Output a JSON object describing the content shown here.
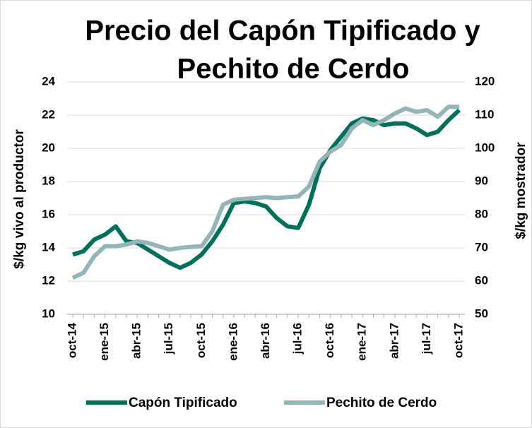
{
  "chart_data": {
    "type": "line",
    "title": [
      "Precio del Capón Tipificado y",
      "Pechito de Cerdo"
    ],
    "y_label": "$/kg vivo al productor",
    "y2_label": "$/kg mostrador",
    "categories": [
      "oct-14",
      null,
      null,
      "ene-15",
      null,
      null,
      "abr-15",
      null,
      null,
      "jul-15",
      null,
      null,
      "oct-15",
      null,
      null,
      "ene-16",
      null,
      null,
      "abr-16",
      null,
      null,
      "jul-16",
      null,
      null,
      "oct-16",
      null,
      null,
      "ene-17",
      null,
      null,
      "abr-17",
      null,
      null,
      "jul-17",
      null,
      null,
      "oct-17"
    ],
    "series": [
      {
        "name": "Capón Tipificado",
        "color": "#00705a",
        "axis": "y",
        "values": [
          13.6,
          13.8,
          14.5,
          14.8,
          15.3,
          14.4,
          14.3,
          13.9,
          13.5,
          13.1,
          12.8,
          13.1,
          13.6,
          14.4,
          15.4,
          16.7,
          16.8,
          16.7,
          16.5,
          15.8,
          15.3,
          15.2,
          16.6,
          18.8,
          19.9,
          20.7,
          21.5,
          21.8,
          21.7,
          21.4,
          21.5,
          21.5,
          21.2,
          20.8,
          21.0,
          21.7,
          22.3
        ]
      },
      {
        "name": "Pechito de Cerdo",
        "color": "#93b5b8",
        "axis": "y2",
        "values": [
          61,
          62.5,
          67.5,
          70.5,
          70.5,
          71,
          72,
          71.5,
          70.5,
          69.5,
          70,
          70.3,
          70.5,
          75,
          83,
          84.5,
          84.8,
          85,
          85.3,
          85,
          85.3,
          85.5,
          88.5,
          96,
          99,
          101,
          106,
          108.5,
          107,
          108.5,
          110.5,
          112,
          111,
          111.5,
          109.5,
          112.5,
          112.5
        ]
      }
    ],
    "ylim": [
      10,
      24
    ],
    "yticks": [
      10,
      12,
      14,
      16,
      18,
      20,
      22,
      24
    ],
    "y2lim": [
      50,
      120
    ],
    "y2ticks": [
      50,
      60,
      70,
      80,
      90,
      100,
      110,
      120
    ],
    "grid": true,
    "legend": "bottom"
  }
}
